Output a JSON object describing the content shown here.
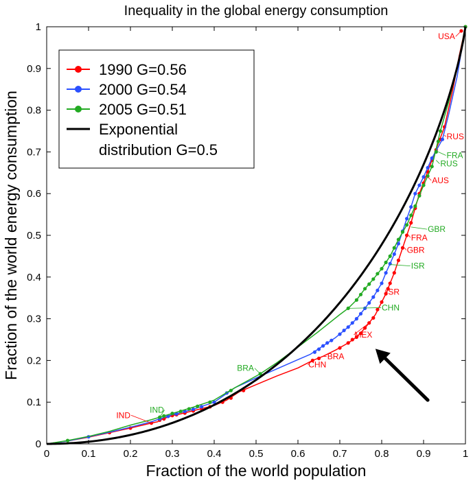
{
  "chart_data": {
    "type": "line",
    "title": "Inequality in the global energy consumption",
    "xlabel": "Fraction of the world population",
    "ylabel": "Fraction of the world energy consumption",
    "xlim": [
      0,
      1
    ],
    "ylim": [
      0,
      1
    ],
    "grid": false,
    "legend_position": "top-left",
    "x_ticks": [
      "0",
      "0.1",
      "0.2",
      "0.3",
      "0.4",
      "0.5",
      "0.6",
      "0.7",
      "0.8",
      "0.9",
      "1"
    ],
    "y_ticks": [
      "0",
      "0.1",
      "0.2",
      "0.3",
      "0.4",
      "0.5",
      "0.6",
      "0.7",
      "0.8",
      "0.9",
      "1"
    ],
    "legend": [
      {
        "label": "1990 G=0.56",
        "color": "#ff0000",
        "style": "line-marker"
      },
      {
        "label": "2000 G=0.54",
        "color": "#2b50ff",
        "style": "line-marker"
      },
      {
        "label": "2005 G=0.51",
        "color": "#22aa22",
        "style": "line-marker"
      },
      {
        "label_line1": "Exponential",
        "label_line2": "distribution  G=0.5",
        "color": "#000000",
        "style": "line"
      }
    ],
    "series": [
      {
        "name": "1990",
        "color": "#ff0000",
        "points": [
          [
            0,
            0
          ],
          [
            0.05,
            0.007
          ],
          [
            0.1,
            0.016
          ],
          [
            0.15,
            0.027
          ],
          [
            0.2,
            0.038
          ],
          [
            0.25,
            0.05
          ],
          [
            0.265,
            0.053
          ],
          [
            0.27,
            0.057
          ],
          [
            0.3,
            0.068
          ],
          [
            0.32,
            0.072
          ],
          [
            0.36,
            0.082
          ],
          [
            0.4,
            0.092
          ],
          [
            0.43,
            0.105
          ],
          [
            0.46,
            0.125
          ],
          [
            0.5,
            0.142
          ],
          [
            0.55,
            0.163
          ],
          [
            0.6,
            0.182
          ],
          [
            0.635,
            0.2
          ],
          [
            0.66,
            0.21
          ],
          [
            0.69,
            0.225
          ],
          [
            0.72,
            0.242
          ],
          [
            0.74,
            0.256
          ],
          [
            0.755,
            0.272
          ],
          [
            0.77,
            0.29
          ],
          [
            0.785,
            0.31
          ],
          [
            0.8,
            0.34
          ],
          [
            0.81,
            0.36
          ],
          [
            0.82,
            0.385
          ],
          [
            0.83,
            0.41
          ],
          [
            0.84,
            0.44
          ],
          [
            0.85,
            0.47
          ],
          [
            0.86,
            0.5
          ],
          [
            0.87,
            0.53
          ],
          [
            0.88,
            0.565
          ],
          [
            0.89,
            0.6
          ],
          [
            0.905,
            0.64
          ],
          [
            0.92,
            0.68
          ],
          [
            0.935,
            0.72
          ],
          [
            0.95,
            0.76
          ],
          [
            0.97,
            0.85
          ],
          [
            0.985,
            0.93
          ],
          [
            1,
            1
          ]
        ],
        "markers": [
          [
            0.15,
            0.027
          ],
          [
            0.2,
            0.038
          ],
          [
            0.25,
            0.05
          ],
          [
            0.27,
            0.057
          ],
          [
            0.28,
            0.06
          ],
          [
            0.3,
            0.068
          ],
          [
            0.31,
            0.07
          ],
          [
            0.33,
            0.074
          ],
          [
            0.35,
            0.079
          ],
          [
            0.37,
            0.084
          ],
          [
            0.39,
            0.089
          ],
          [
            0.42,
            0.1
          ],
          [
            0.44,
            0.11
          ],
          [
            0.47,
            0.128
          ],
          [
            0.635,
            0.2
          ],
          [
            0.65,
            0.205
          ],
          [
            0.7,
            0.23
          ],
          [
            0.72,
            0.242
          ],
          [
            0.73,
            0.25
          ],
          [
            0.74,
            0.256
          ],
          [
            0.75,
            0.265
          ],
          [
            0.76,
            0.278
          ],
          [
            0.77,
            0.29
          ],
          [
            0.78,
            0.302
          ],
          [
            0.79,
            0.322
          ],
          [
            0.8,
            0.34
          ],
          [
            0.81,
            0.36
          ],
          [
            0.815,
            0.372
          ],
          [
            0.82,
            0.385
          ],
          [
            0.83,
            0.41
          ],
          [
            0.84,
            0.44
          ],
          [
            0.85,
            0.47
          ],
          [
            0.86,
            0.5
          ],
          [
            0.87,
            0.53
          ],
          [
            0.88,
            0.565
          ],
          [
            0.89,
            0.6
          ],
          [
            0.9,
            0.625
          ],
          [
            0.91,
            0.652
          ],
          [
            0.92,
            0.68
          ],
          [
            0.93,
            0.705
          ],
          [
            0.94,
            0.73
          ],
          [
            0.95,
            0.76
          ],
          [
            0.99,
            0.99
          ],
          [
            1,
            1
          ]
        ]
      },
      {
        "name": "2000",
        "color": "#2b50ff",
        "points": [
          [
            0,
            0
          ],
          [
            0.05,
            0.007
          ],
          [
            0.1,
            0.017
          ],
          [
            0.15,
            0.028
          ],
          [
            0.2,
            0.04
          ],
          [
            0.25,
            0.053
          ],
          [
            0.27,
            0.06
          ],
          [
            0.3,
            0.07
          ],
          [
            0.35,
            0.083
          ],
          [
            0.4,
            0.1
          ],
          [
            0.45,
            0.135
          ],
          [
            0.5,
            0.158
          ],
          [
            0.55,
            0.18
          ],
          [
            0.6,
            0.202
          ],
          [
            0.63,
            0.215
          ],
          [
            0.66,
            0.235
          ],
          [
            0.69,
            0.255
          ],
          [
            0.72,
            0.28
          ],
          [
            0.74,
            0.3
          ],
          [
            0.76,
            0.325
          ],
          [
            0.78,
            0.352
          ],
          [
            0.8,
            0.385
          ],
          [
            0.81,
            0.41
          ],
          [
            0.82,
            0.432
          ],
          [
            0.83,
            0.455
          ],
          [
            0.84,
            0.48
          ],
          [
            0.85,
            0.51
          ],
          [
            0.86,
            0.54
          ],
          [
            0.87,
            0.568
          ],
          [
            0.88,
            0.6
          ],
          [
            0.9,
            0.64
          ],
          [
            0.92,
            0.685
          ],
          [
            0.945,
            0.73
          ],
          [
            0.96,
            0.79
          ],
          [
            0.98,
            0.88
          ],
          [
            1,
            1
          ]
        ],
        "markers": [
          [
            0.1,
            0.017
          ],
          [
            0.27,
            0.06
          ],
          [
            0.29,
            0.066
          ],
          [
            0.31,
            0.072
          ],
          [
            0.33,
            0.078
          ],
          [
            0.35,
            0.083
          ],
          [
            0.37,
            0.089
          ],
          [
            0.4,
            0.1
          ],
          [
            0.43,
            0.122
          ],
          [
            0.64,
            0.22
          ],
          [
            0.65,
            0.227
          ],
          [
            0.66,
            0.235
          ],
          [
            0.67,
            0.242
          ],
          [
            0.68,
            0.248
          ],
          [
            0.7,
            0.263
          ],
          [
            0.71,
            0.272
          ],
          [
            0.72,
            0.28
          ],
          [
            0.73,
            0.29
          ],
          [
            0.74,
            0.3
          ],
          [
            0.75,
            0.312
          ],
          [
            0.76,
            0.325
          ],
          [
            0.77,
            0.338
          ],
          [
            0.78,
            0.352
          ],
          [
            0.79,
            0.368
          ],
          [
            0.8,
            0.385
          ],
          [
            0.81,
            0.41
          ],
          [
            0.82,
            0.432
          ],
          [
            0.83,
            0.455
          ],
          [
            0.84,
            0.48
          ],
          [
            0.85,
            0.51
          ],
          [
            0.86,
            0.54
          ],
          [
            0.87,
            0.568
          ],
          [
            0.88,
            0.6
          ],
          [
            0.89,
            0.62
          ],
          [
            0.9,
            0.64
          ],
          [
            0.91,
            0.662
          ],
          [
            0.92,
            0.685
          ],
          [
            0.93,
            0.7
          ],
          [
            0.945,
            0.73
          ]
        ]
      },
      {
        "name": "2005",
        "color": "#22aa22",
        "points": [
          [
            0,
            0
          ],
          [
            0.05,
            0.008
          ],
          [
            0.1,
            0.018
          ],
          [
            0.15,
            0.03
          ],
          [
            0.2,
            0.045
          ],
          [
            0.25,
            0.058
          ],
          [
            0.27,
            0.064
          ],
          [
            0.3,
            0.073
          ],
          [
            0.35,
            0.088
          ],
          [
            0.4,
            0.105
          ],
          [
            0.45,
            0.135
          ],
          [
            0.51,
            0.168
          ],
          [
            0.55,
            0.195
          ],
          [
            0.6,
            0.232
          ],
          [
            0.65,
            0.27
          ],
          [
            0.7,
            0.31
          ],
          [
            0.72,
            0.325
          ],
          [
            0.74,
            0.345
          ],
          [
            0.76,
            0.372
          ],
          [
            0.78,
            0.395
          ],
          [
            0.8,
            0.42
          ],
          [
            0.82,
            0.45
          ],
          [
            0.84,
            0.49
          ],
          [
            0.86,
            0.525
          ],
          [
            0.88,
            0.57
          ],
          [
            0.9,
            0.62
          ],
          [
            0.92,
            0.665
          ],
          [
            0.94,
            0.75
          ],
          [
            0.96,
            0.82
          ],
          [
            0.98,
            0.9
          ],
          [
            1,
            1
          ]
        ],
        "markers": [
          [
            0.05,
            0.008
          ],
          [
            0.27,
            0.064
          ],
          [
            0.28,
            0.067
          ],
          [
            0.3,
            0.073
          ],
          [
            0.32,
            0.078
          ],
          [
            0.34,
            0.084
          ],
          [
            0.36,
            0.09
          ],
          [
            0.39,
            0.1
          ],
          [
            0.44,
            0.128
          ],
          [
            0.51,
            0.168
          ],
          [
            0.72,
            0.325
          ],
          [
            0.74,
            0.345
          ],
          [
            0.75,
            0.358
          ],
          [
            0.76,
            0.372
          ],
          [
            0.77,
            0.383
          ],
          [
            0.78,
            0.395
          ],
          [
            0.79,
            0.408
          ],
          [
            0.8,
            0.42
          ],
          [
            0.81,
            0.435
          ],
          [
            0.82,
            0.45
          ],
          [
            0.83,
            0.47
          ],
          [
            0.84,
            0.49
          ],
          [
            0.85,
            0.508
          ],
          [
            0.86,
            0.525
          ],
          [
            0.87,
            0.548
          ],
          [
            0.88,
            0.57
          ],
          [
            0.89,
            0.595
          ],
          [
            0.9,
            0.62
          ],
          [
            0.91,
            0.642
          ],
          [
            0.92,
            0.665
          ],
          [
            0.93,
            0.7
          ],
          [
            0.935,
            0.725
          ],
          [
            0.94,
            0.75
          ],
          [
            1,
            1
          ]
        ]
      },
      {
        "name": "Exponential distribution G=0.5",
        "color": "#000000",
        "function": "x + (1 - x) * ln(1 - x)"
      }
    ],
    "annotations": [
      {
        "text": "USA",
        "color": "#ff0000",
        "x": 0.99,
        "y": 0.99,
        "anchor": "end",
        "lx": 0.975,
        "ly": 0.97
      },
      {
        "text": "RUS",
        "color": "#ff0000",
        "x": 0.95,
        "y": 0.74,
        "anchor": "start",
        "lx": 0.955,
        "ly": 0.73
      },
      {
        "text": "FRA",
        "color": "#22aa22",
        "x": 0.935,
        "y": 0.7,
        "anchor": "start",
        "lx": 0.955,
        "ly": 0.685
      },
      {
        "text": "RUS",
        "color": "#22aa22",
        "x": 0.93,
        "y": 0.68,
        "anchor": "start",
        "lx": 0.94,
        "ly": 0.665
      },
      {
        "text": "AUS",
        "color": "#ff0000",
        "x": 0.91,
        "y": 0.64,
        "anchor": "start",
        "lx": 0.92,
        "ly": 0.625
      },
      {
        "text": "GBR",
        "color": "#22aa22",
        "x": 0.87,
        "y": 0.52,
        "anchor": "start",
        "lx": 0.91,
        "ly": 0.508
      },
      {
        "text": "FRA",
        "color": "#ff0000",
        "x": 0.865,
        "y": 0.5,
        "anchor": "start",
        "lx": 0.87,
        "ly": 0.488
      },
      {
        "text": "GBR",
        "color": "#ff0000",
        "x": 0.855,
        "y": 0.47,
        "anchor": "start",
        "lx": 0.86,
        "ly": 0.458
      },
      {
        "text": "ISR",
        "color": "#22aa22",
        "x": 0.82,
        "y": 0.43,
        "anchor": "start",
        "lx": 0.87,
        "ly": 0.42
      },
      {
        "text": "ISR",
        "color": "#ff0000",
        "x": 0.81,
        "y": 0.37,
        "anchor": "start",
        "lx": 0.81,
        "ly": 0.358
      },
      {
        "text": "CHN",
        "color": "#22aa22",
        "x": 0.72,
        "y": 0.325,
        "anchor": "start",
        "lx": 0.8,
        "ly": 0.32
      },
      {
        "text": "MEX",
        "color": "#ff0000",
        "x": 0.77,
        "y": 0.29,
        "anchor": "start",
        "lx": 0.735,
        "ly": 0.255
      },
      {
        "text": "BRA",
        "color": "#ff0000",
        "x": 0.66,
        "y": 0.21,
        "anchor": "start",
        "lx": 0.67,
        "ly": 0.203
      },
      {
        "text": "CHN",
        "color": "#ff0000",
        "x": 0.635,
        "y": 0.2,
        "anchor": "start",
        "lx": 0.625,
        "ly": 0.183
      },
      {
        "text": "BRA",
        "color": "#22aa22",
        "x": 0.51,
        "y": 0.168,
        "anchor": "end",
        "lx": 0.495,
        "ly": 0.175
      },
      {
        "text": "IND",
        "color": "#22aa22",
        "x": 0.27,
        "y": 0.064,
        "anchor": "end",
        "lx": 0.28,
        "ly": 0.075
      },
      {
        "text": "IND",
        "color": "#ff0000",
        "x": 0.25,
        "y": 0.05,
        "anchor": "end",
        "lx": 0.2,
        "ly": 0.062
      }
    ],
    "arrow": {
      "from": [
        0.91,
        0.105
      ],
      "to": [
        0.785,
        0.228
      ],
      "color": "#000000"
    }
  }
}
